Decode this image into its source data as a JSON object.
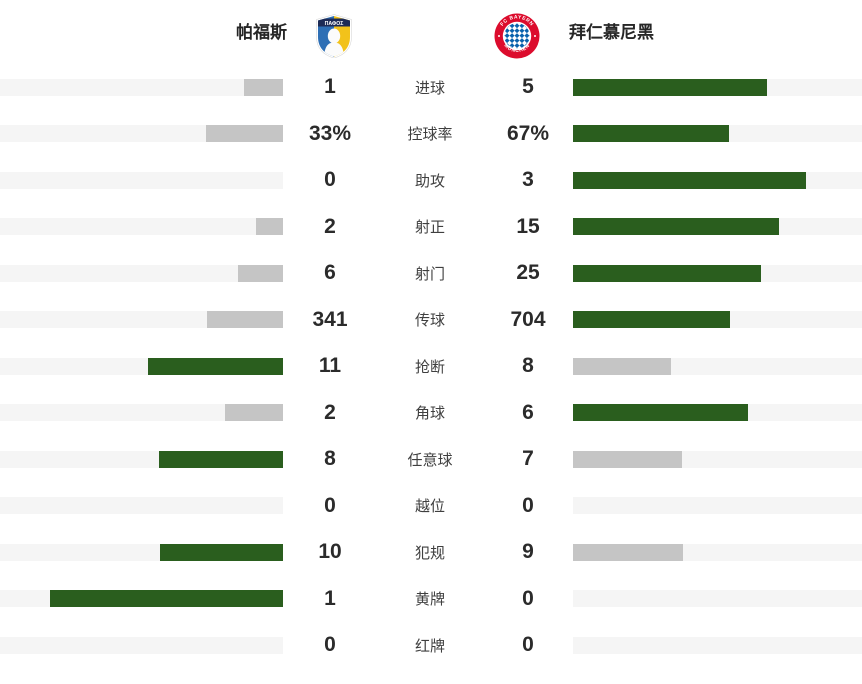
{
  "header": {
    "home_team": "帕福斯",
    "away_team": "拜仁慕尼黑",
    "home_crest_text": "ΠΑΦΟΣ",
    "away_crest_text_top": "FC BAYERN",
    "away_crest_text_bottom": "MÜNCHEN"
  },
  "colors": {
    "leading_bar": "#2a5e1e",
    "trailing_bar": "#c5c5c5",
    "bar_track": "#f5f5f5",
    "value_text": "#2b2b2b",
    "label_text": "#3f3f3f",
    "pafos_navy": "#1d2b56",
    "pafos_blue": "#2e6fb5",
    "pafos_yellow": "#f2c21a",
    "bayern_red": "#dc0c2d",
    "bayern_blue": "#0a63ad"
  },
  "rows": [
    {
      "label": "进球",
      "home": "1",
      "away": "5"
    },
    {
      "label": "控球率",
      "home": "33%",
      "away": "67%"
    },
    {
      "label": "助攻",
      "home": "0",
      "away": "3"
    },
    {
      "label": "射正",
      "home": "2",
      "away": "15"
    },
    {
      "label": "射门",
      "home": "6",
      "away": "25"
    },
    {
      "label": "传球",
      "home": "341",
      "away": "704"
    },
    {
      "label": "抢断",
      "home": "11",
      "away": "8"
    },
    {
      "label": "角球",
      "home": "2",
      "away": "6"
    },
    {
      "label": "任意球",
      "home": "8",
      "away": "7"
    },
    {
      "label": "越位",
      "home": "0",
      "away": "0"
    },
    {
      "label": "犯规",
      "home": "10",
      "away": "9"
    },
    {
      "label": "黄牌",
      "home": "1",
      "away": "0"
    },
    {
      "label": "红牌",
      "home": "0",
      "away": "0"
    }
  ],
  "chart_data": {
    "type": "bar",
    "title": "帕福斯 vs 拜仁慕尼黑",
    "categories": [
      "进球",
      "控球率",
      "助攻",
      "射正",
      "射门",
      "传球",
      "抢断",
      "角球",
      "任意球",
      "越位",
      "犯规",
      "黄牌",
      "红牌"
    ],
    "series": [
      {
        "name": "帕福斯",
        "values": [
          1,
          33,
          0,
          2,
          6,
          341,
          11,
          2,
          8,
          0,
          10,
          1,
          0
        ]
      },
      {
        "name": "拜仁慕尼黑",
        "values": [
          5,
          67,
          3,
          15,
          25,
          704,
          8,
          6,
          7,
          0,
          9,
          0,
          0
        ]
      }
    ],
    "value_format_notes": "控球率 values are percentages",
    "layout": "mirrored horizontal bars; per row the leader's bar is green, the other gray; bar width proportional to value share of row total, max 233px; grid off; legend shown as team names with crests at top"
  }
}
